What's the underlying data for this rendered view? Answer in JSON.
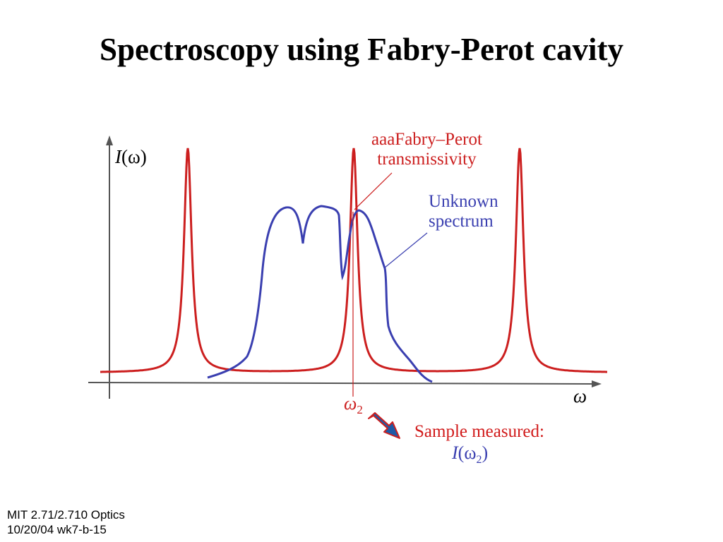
{
  "slide": {
    "title": "Spectroscopy using Fabry-Perot cavity"
  },
  "diagram": {
    "y_axis_label_symbol": "I",
    "y_axis_label_arg": "(ω)",
    "x_axis_label": "ω",
    "omega2_symbol": "ω",
    "omega2_sub": "2",
    "fabry_perot_label_line1": "aaaFabry–Perot",
    "fabry_perot_label_line2": "transmissivity",
    "unknown_label_line1": "Unknown",
    "unknown_label_line2": "spectrum",
    "sample_label": "Sample measured:",
    "sample_eq_symbol": "I",
    "sample_eq_arg": "(ω",
    "sample_eq_sub": "2",
    "sample_eq_close": ")",
    "colors": {
      "fabry_perot": "#cc1f1f",
      "unknown_spectrum": "#3a3fb0",
      "axes": "#555555",
      "arrow_fill": "#1f5aa6",
      "arrow_stroke": "#cc1f1f"
    }
  },
  "footer": {
    "line1": "MIT 2.71/2.710 Optics",
    "line2": "10/20/04 wk7-b-15"
  }
}
